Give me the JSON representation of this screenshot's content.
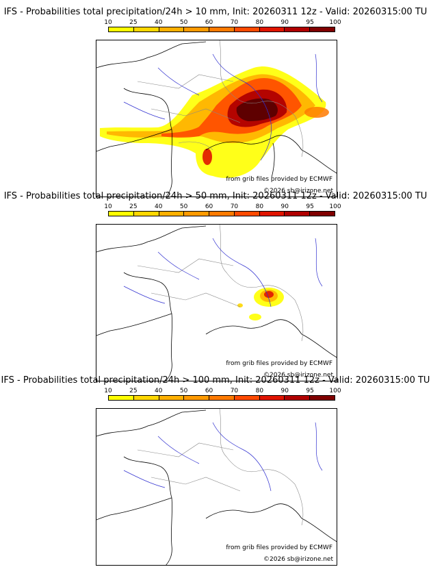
{
  "legend": {
    "ticks": [
      "10",
      "25",
      "40",
      "50",
      "60",
      "70",
      "80",
      "90",
      "95",
      "100"
    ],
    "colors": [
      "#ffff00",
      "#ffd700",
      "#ffb000",
      "#ff9a00",
      "#ff7a00",
      "#ff4a00",
      "#e01400",
      "#b00000",
      "#800000",
      "#4a0000"
    ]
  },
  "panels": [
    {
      "title": "IFS - Probabilities total precipitation/24h > 10 mm, Init: 20260311 12z - Valid: 20260315:00 TU",
      "credit_source": "from grib files provided by ECMWF",
      "credit_copyright": "©2026 sb@irizone.net"
    },
    {
      "title": "IFS - Probabilities total precipitation/24h > 50 mm, Init: 20260311 12z - Valid: 20260315:00 TU",
      "credit_source": "from grib files provided by ECMWF",
      "credit_copyright": "©2026 sb@irizone.net"
    },
    {
      "title": "IFS - Probabilities total precipitation/24h > 100 mm, Init: 20260311 12z - Valid: 20260315:00 TU",
      "credit_source": "from grib files provided by ECMWF",
      "credit_copyright": "©2026 sb@irizone.net"
    }
  ]
}
